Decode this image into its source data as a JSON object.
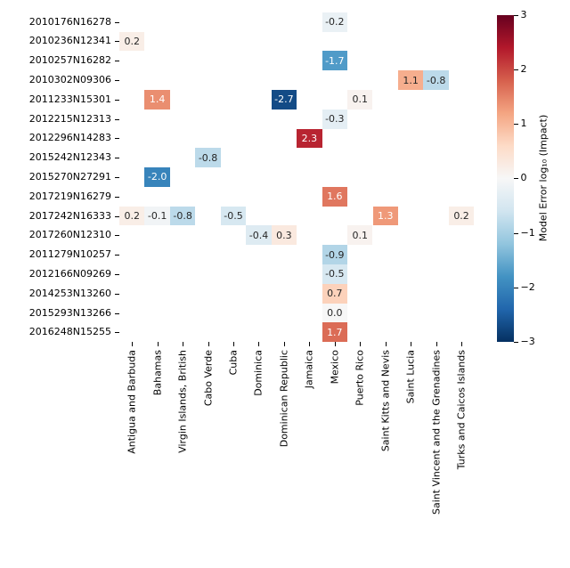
{
  "figure": {
    "background": "#ffffff",
    "text_color": "#000000"
  },
  "chart_data": {
    "type": "heatmap",
    "title": "",
    "colorbar_label": "Model Error log₁₀ (Impact)",
    "colormap": "RdBu_r",
    "vmin": -3,
    "vmax": 3,
    "colormap_anchors": [
      "#053061",
      "#2166ac",
      "#4393c3",
      "#92c5de",
      "#d1e5f0",
      "#f7f7f7",
      "#fddbc7",
      "#f4a582",
      "#d6604d",
      "#b2182b",
      "#67001f"
    ],
    "annot_text_dark": "#262626",
    "annot_text_light": "#ffffff",
    "colorbar_tick_labels": [
      "3",
      "2",
      "1",
      "0",
      "−1",
      "−2",
      "−3"
    ],
    "colorbar_tick_values": [
      3,
      2,
      1,
      0,
      -1,
      -2,
      -3
    ],
    "rows": [
      "2010176N16278",
      "2010236N12341",
      "2010257N16282",
      "2010302N09306",
      "2011233N15301",
      "2012215N12313",
      "2012296N14283",
      "2015242N12343",
      "2015270N27291",
      "2017219N16279",
      "2017242N16333",
      "2017260N12310",
      "2011279N10257",
      "2012166N09269",
      "2014253N13260",
      "2015293N13266",
      "2016248N15255"
    ],
    "columns": [
      "Antigua and Barbuda",
      "Bahamas",
      "Virgin Islands, British",
      "Cabo Verde",
      "Cuba",
      "Dominica",
      "Dominican Republic",
      "Jamaica",
      "Mexico",
      "Puerto Rico",
      "Saint Kitts and Nevis",
      "Saint Lucia",
      "Saint Vincent and the Grenadines",
      "Turks and Caicos Islands"
    ],
    "cells": [
      {
        "row": 0,
        "col": 8,
        "value": -0.2,
        "label": "-0.2"
      },
      {
        "row": 1,
        "col": 0,
        "value": 0.2,
        "label": "0.2"
      },
      {
        "row": 2,
        "col": 8,
        "value": -1.7,
        "label": "-1.7"
      },
      {
        "row": 3,
        "col": 11,
        "value": 1.1,
        "label": "1.1"
      },
      {
        "row": 3,
        "col": 12,
        "value": -0.8,
        "label": "-0.8"
      },
      {
        "row": 4,
        "col": 1,
        "value": 1.4,
        "label": "1.4"
      },
      {
        "row": 4,
        "col": 6,
        "value": -2.7,
        "label": "-2.7"
      },
      {
        "row": 4,
        "col": 9,
        "value": 0.1,
        "label": "0.1"
      },
      {
        "row": 5,
        "col": 8,
        "value": -0.3,
        "label": "-0.3"
      },
      {
        "row": 6,
        "col": 7,
        "value": 2.3,
        "label": "2.3"
      },
      {
        "row": 7,
        "col": 3,
        "value": -0.8,
        "label": "-0.8"
      },
      {
        "row": 8,
        "col": 1,
        "value": -2.0,
        "label": "-2.0"
      },
      {
        "row": 9,
        "col": 8,
        "value": 1.6,
        "label": "1.6"
      },
      {
        "row": 10,
        "col": 0,
        "value": 0.2,
        "label": "0.2"
      },
      {
        "row": 10,
        "col": 1,
        "value": -0.1,
        "label": "-0.1"
      },
      {
        "row": 10,
        "col": 2,
        "value": -0.8,
        "label": "-0.8"
      },
      {
        "row": 10,
        "col": 4,
        "value": -0.5,
        "label": "-0.5"
      },
      {
        "row": 10,
        "col": 10,
        "value": 1.3,
        "label": "1.3"
      },
      {
        "row": 10,
        "col": 13,
        "value": 0.2,
        "label": "0.2"
      },
      {
        "row": 11,
        "col": 5,
        "value": -0.4,
        "label": "-0.4"
      },
      {
        "row": 11,
        "col": 6,
        "value": 0.3,
        "label": "0.3"
      },
      {
        "row": 11,
        "col": 9,
        "value": 0.1,
        "label": "0.1"
      },
      {
        "row": 12,
        "col": 8,
        "value": -0.9,
        "label": "-0.9"
      },
      {
        "row": 13,
        "col": 8,
        "value": -0.5,
        "label": "-0.5"
      },
      {
        "row": 14,
        "col": 8,
        "value": 0.7,
        "label": "0.7"
      },
      {
        "row": 15,
        "col": 8,
        "value": 0.0,
        "label": "0.0"
      },
      {
        "row": 16,
        "col": 8,
        "value": 1.7,
        "label": "1.7"
      }
    ]
  }
}
